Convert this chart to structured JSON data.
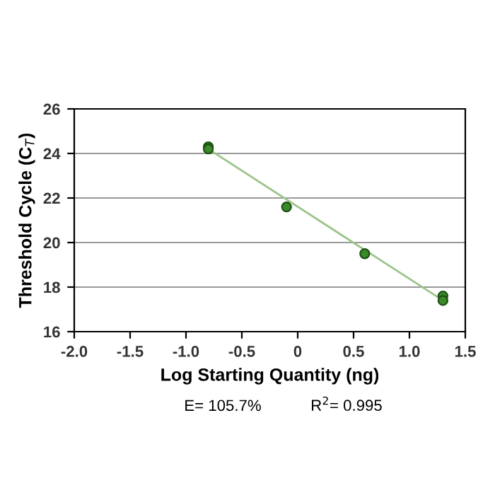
{
  "chart_data": {
    "type": "scatter",
    "xlabel": "Log Starting Quantity (ng)",
    "ylabel": "Threshold Cycle (C$_{T}$)",
    "xlim": [
      -2.0,
      1.5
    ],
    "xticks": [
      {
        "value": -2.0,
        "label": "-2.0"
      },
      {
        "value": -1.5,
        "label": "-1.5"
      },
      {
        "value": -1.0,
        "label": "-1.0"
      },
      {
        "value": -0.5,
        "label": "-0.5"
      },
      0,
      {
        "value": 0.5,
        "label": "0.5"
      },
      {
        "value": 1.0,
        "label": "1.0"
      },
      {
        "value": 1.5,
        "label": "1.5"
      }
    ],
    "ylim": [
      16,
      26
    ],
    "yticks": [
      16,
      18,
      20,
      22,
      24,
      26
    ],
    "grid": "y",
    "series": [
      {
        "marker": "circle",
        "color": "#3a8a2a",
        "x": [
          -0.8,
          -0.8,
          -0.1,
          0.6,
          1.3,
          1.3
        ],
        "values": [
          24.3,
          24.2,
          21.6,
          19.5,
          17.6,
          17.4
        ]
      },
      {
        "type": "line",
        "marker": "none",
        "color": "#9cc48a",
        "x": [
          -0.8,
          1.3
        ],
        "values": [
          24.2,
          17.4
        ]
      }
    ],
    "annotations": [
      "E= 105.7%",
      "R$^{2}$= 0.995"
    ]
  }
}
